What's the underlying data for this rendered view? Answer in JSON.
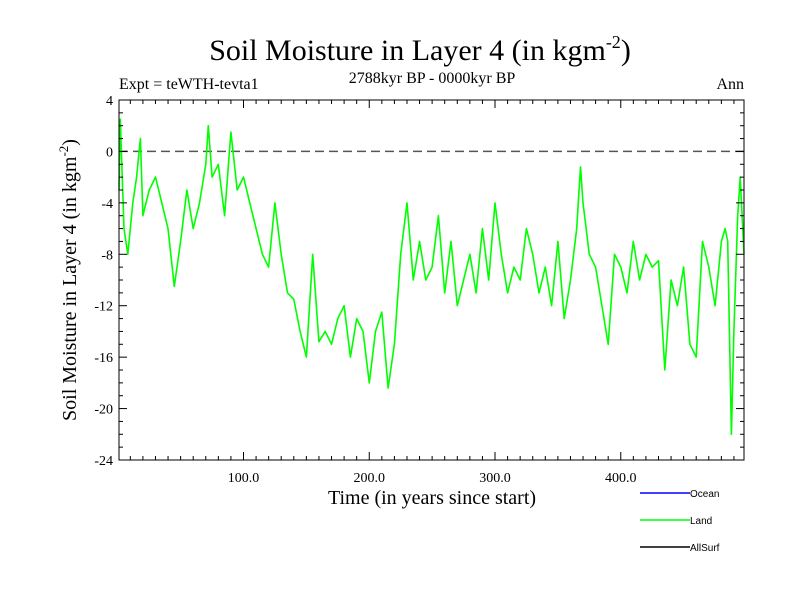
{
  "chart_data": {
    "type": "line",
    "title": "Soil Moisture in Layer 4 (in kgm",
    "title_sup": "-2",
    "title_close": ")",
    "subtitle_left": "Expt = teWTH-tevta1",
    "subtitle_center": "2788kyr BP - 0000kyr BP",
    "subtitle_right": "Ann",
    "xlabel": "Time (in years since start)",
    "ylabel": "Soil Moisture in Layer 4 (in kgm",
    "ylabel_sup": "-2",
    "ylabel_close": ")",
    "xlim": [
      1,
      498
    ],
    "ylim": [
      -24,
      4
    ],
    "xticks": [
      100,
      200,
      300,
      400
    ],
    "xtick_labels": [
      "100.0",
      "200.0",
      "300.0",
      "400.0"
    ],
    "yticks": [
      4,
      0,
      -4,
      -8,
      -12,
      -16,
      -20,
      -24
    ],
    "ytick_labels": [
      "4",
      "0",
      "-4",
      "-8",
      "-12",
      "-16",
      "-20",
      "-24"
    ],
    "reference_line": 0,
    "legend": [
      {
        "name": "Ocean",
        "color": "#0000ff"
      },
      {
        "name": "Land",
        "color": "#00ff00"
      },
      {
        "name": "AllSurf",
        "color": "#000000"
      }
    ],
    "series": [
      {
        "name": "Land",
        "color": "#00ff00",
        "x": [
          1,
          2,
          5,
          8,
          12,
          15,
          18,
          20,
          25,
          30,
          35,
          40,
          45,
          50,
          55,
          60,
          65,
          70,
          72,
          75,
          80,
          85,
          90,
          95,
          100,
          105,
          110,
          115,
          120,
          125,
          130,
          135,
          140,
          145,
          150,
          155,
          160,
          165,
          170,
          175,
          180,
          185,
          190,
          195,
          200,
          205,
          210,
          215,
          220,
          225,
          230,
          235,
          240,
          245,
          250,
          255,
          260,
          265,
          270,
          275,
          280,
          285,
          290,
          295,
          300,
          305,
          310,
          315,
          320,
          325,
          330,
          335,
          340,
          345,
          350,
          355,
          360,
          365,
          368,
          370,
          375,
          380,
          385,
          390,
          395,
          400,
          405,
          410,
          415,
          420,
          425,
          430,
          435,
          440,
          445,
          450,
          455,
          460,
          465,
          470,
          475,
          480,
          483,
          485,
          488,
          490,
          493,
          495,
          498
        ],
        "y": [
          -3,
          2.5,
          -6,
          -8,
          -4,
          -2,
          1,
          -5,
          -3,
          -2,
          -4,
          -6,
          -10.5,
          -7,
          -3,
          -6,
          -4,
          -1,
          2,
          -2,
          -1,
          -5,
          1.5,
          -3,
          -2,
          -4,
          -6,
          -8,
          -9,
          -4,
          -8,
          -11,
          -11.5,
          -14,
          -16,
          -8,
          -14.8,
          -14,
          -15,
          -13,
          -12,
          -16,
          -13,
          -14,
          -18,
          -14,
          -12.5,
          -18.4,
          -15,
          -8,
          -4,
          -10,
          -7,
          -10,
          -9,
          -5,
          -11,
          -7,
          -12,
          -10,
          -8,
          -11,
          -6,
          -10,
          -4,
          -8,
          -11,
          -9,
          -10,
          -6,
          -8,
          -11,
          -9,
          -12,
          -7,
          -13,
          -10,
          -6,
          -1.2,
          -4,
          -8,
          -9,
          -12,
          -15,
          -8,
          -9,
          -11,
          -7,
          -10,
          -8,
          -9,
          -8.5,
          -17,
          -10,
          -12,
          -9,
          -15,
          -16,
          -7,
          -9,
          -12,
          -7,
          -6,
          -7,
          -22,
          -14,
          -5,
          -2,
          -8
        ]
      }
    ]
  }
}
